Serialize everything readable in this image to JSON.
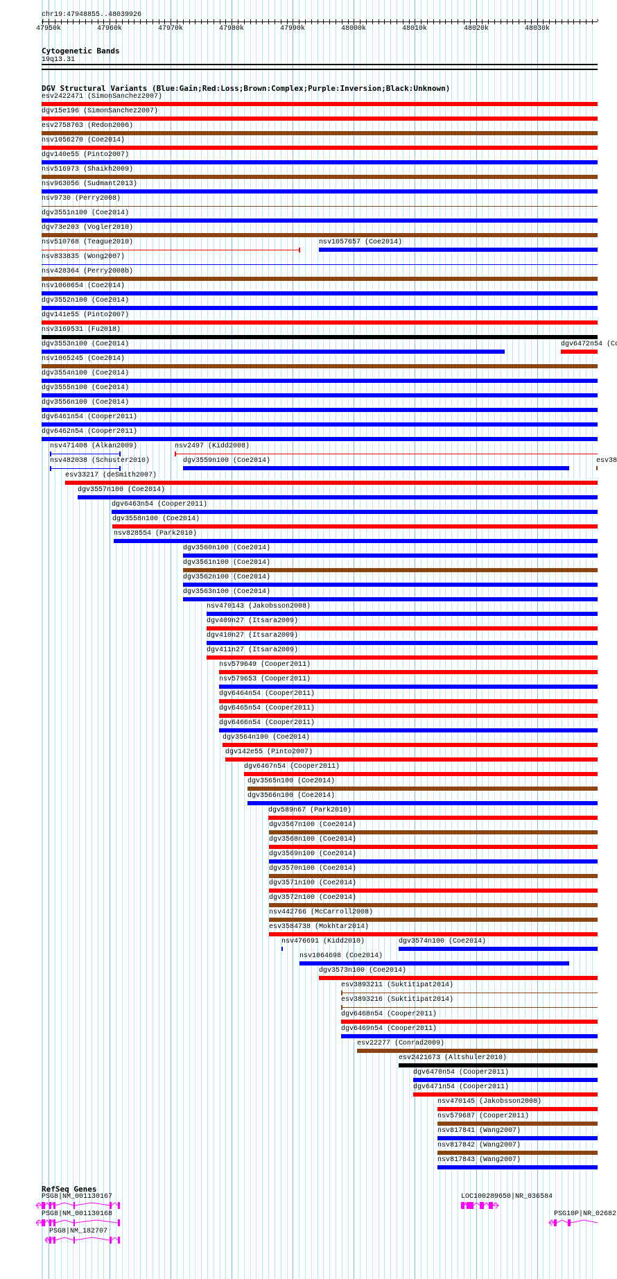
{
  "view": {
    "chrom": "chr19",
    "start": 47948855,
    "end": 48039926,
    "location_label": "chr19:47948855..48039926"
  },
  "axis": {
    "ticks": [
      "47950k",
      "47960k",
      "47970k",
      "47980k",
      "47990k",
      "48000k",
      "48010k",
      "48020k",
      "48030k"
    ],
    "tick_values": [
      47950000,
      47960000,
      47970000,
      47980000,
      47990000,
      48000000,
      48010000,
      48020000,
      48030000
    ]
  },
  "cytoband": {
    "title": "Cytogenetic Bands",
    "band": "19q13.31"
  },
  "dgv": {
    "title": "DGV Structural Variants (Blue:Gain;Red:Loss;Brown:Complex;Purple:Inversion;Black:Unknown)",
    "colors": {
      "gain": "#0000ff",
      "loss": "#ff0000",
      "complex": "#8b4513",
      "inversion": "#800080",
      "unknown": "#000000"
    },
    "rows": [
      [
        {
          "label": "esv2422471 (SimonSanchez2007)",
          "type": "loss",
          "start": 47948855,
          "end": 48039926
        }
      ],
      [
        {
          "label": "dgv15e196 (SimonSanchez2007)",
          "type": "loss",
          "start": 47948855,
          "end": 48039926
        }
      ],
      [
        {
          "label": "esv2758763 (Redon2006)",
          "type": "complex",
          "start": 47948855,
          "end": 48039926
        }
      ],
      [
        {
          "label": "nsv1056270 (Coe2014)",
          "type": "loss",
          "start": 47948855,
          "end": 48039926
        }
      ],
      [
        {
          "label": "dgv140e55 (Pinto2007)",
          "type": "gain",
          "start": 47948855,
          "end": 48039926
        }
      ],
      [
        {
          "label": "nsv516973 (Shaikh2009)",
          "type": "complex",
          "start": 47948855,
          "end": 48039926
        }
      ],
      [
        {
          "label": "nsv963056 (Sudmant2013)",
          "type": "gain",
          "start": 47948855,
          "end": 48039926
        }
      ],
      [
        {
          "label": "nsv9730 (Perry2008)",
          "type": "complex",
          "start": 47948855,
          "end": 48039926,
          "thin": true
        }
      ],
      [
        {
          "label": "dgv3551n100 (Coe2014)",
          "type": "gain",
          "start": 47948855,
          "end": 48039926
        }
      ],
      [
        {
          "label": "dgv73e203 (Vogler2010)",
          "type": "complex",
          "start": 47948855,
          "end": 48039926
        }
      ],
      [
        {
          "label": "nsv510768 (Teague2010)",
          "type": "loss",
          "start": 47948855,
          "end": 47991200,
          "thin": true
        },
        {
          "label": "nsv1057657 (Coe2014)",
          "type": "gain",
          "start": 47994300,
          "end": 48039926
        }
      ],
      [
        {
          "label": "nsv833835 (Wong2007)",
          "type": "gain",
          "start": 47948855,
          "end": 48039926,
          "thin": true
        }
      ],
      [
        {
          "label": "nsv428364 (Perry2008b)",
          "type": "complex",
          "start": 47948855,
          "end": 48039926
        }
      ],
      [
        {
          "label": "nsv1060654 (Coe2014)",
          "type": "gain",
          "start": 47948855,
          "end": 48039926
        }
      ],
      [
        {
          "label": "dgv3552n100 (Coe2014)",
          "type": "gain",
          "start": 47948855,
          "end": 48039926
        }
      ],
      [
        {
          "label": "dgv141e55 (Pinto2007)",
          "type": "loss",
          "start": 47948855,
          "end": 48039926
        }
      ],
      [
        {
          "label": "nsv3169531 (Fu2018)",
          "type": "unknown",
          "start": 47948855,
          "end": 48039926
        }
      ],
      [
        {
          "label": "dgv3553n100 (Coe2014)",
          "type": "gain",
          "start": 47948855,
          "end": 48024700
        },
        {
          "label": "dgv6472n54 (Co",
          "type": "loss",
          "start": 48033900,
          "end": 48039926
        }
      ],
      [
        {
          "label": "nsv1065245 (Coe2014)",
          "type": "complex",
          "start": 47948855,
          "end": 48039926
        }
      ],
      [
        {
          "label": "dgv3554n100 (Coe2014)",
          "type": "gain",
          "start": 47948855,
          "end": 48039926
        }
      ],
      [
        {
          "label": "dgv3555n100 (Coe2014)",
          "type": "gain",
          "start": 47948855,
          "end": 48039926
        }
      ],
      [
        {
          "label": "dgv3556n100 (Coe2014)",
          "type": "gain",
          "start": 47948855,
          "end": 48039926
        }
      ],
      [
        {
          "label": "dgv6461n54 (Cooper2011)",
          "type": "gain",
          "start": 47948855,
          "end": 48039926
        }
      ],
      [
        {
          "label": "dgv6462n54 (Cooper2011)",
          "type": "gain",
          "start": 47948855,
          "end": 48039926
        }
      ],
      [
        {
          "label": "nsv471408 (Alkan2009)",
          "type": "gain",
          "start": 47950200,
          "end": 47961800,
          "thin": true
        },
        {
          "label": "nsv2497 (Kidd2008)",
          "type": "loss",
          "start": 47970650,
          "end": 48039926,
          "thin": true
        }
      ],
      [
        {
          "label": "nsv482038 (Schuster2010)",
          "type": "gain",
          "start": 47950200,
          "end": 47961800,
          "thin": true
        },
        {
          "label": "dgv3559n100 (Coe2014)",
          "type": "gain",
          "start": 47972000,
          "end": 48035270
        },
        {
          "label": "esv38",
          "type": "complex",
          "start": 48039700,
          "end": 48039926
        }
      ],
      [
        {
          "label": "esv33217 (deSmith2007)",
          "type": "loss",
          "start": 47952700,
          "end": 48039926
        }
      ],
      [
        {
          "label": "dgv3557n100 (Coe2014)",
          "type": "gain",
          "start": 47954760,
          "end": 48039926
        }
      ],
      [
        {
          "label": "dgv6463n54 (Cooper2011)",
          "type": "gain",
          "start": 47960320,
          "end": 48039926
        }
      ],
      [
        {
          "label": "dgv3558n100 (Coe2014)",
          "type": "loss",
          "start": 47960440,
          "end": 48039926
        }
      ],
      [
        {
          "label": "nsv828554 (Park2010)",
          "type": "gain",
          "start": 47960660,
          "end": 48039926
        }
      ],
      [
        {
          "label": "dgv3560n100 (Coe2014)",
          "type": "gain",
          "start": 47972000,
          "end": 48039926
        }
      ],
      [
        {
          "label": "dgv3561n100 (Coe2014)",
          "type": "complex",
          "start": 47972000,
          "end": 48039926
        }
      ],
      [
        {
          "label": "dgv3562n100 (Coe2014)",
          "type": "gain",
          "start": 47972000,
          "end": 48039926
        }
      ],
      [
        {
          "label": "dgv3563n100 (Coe2014)",
          "type": "gain",
          "start": 47972000,
          "end": 48039926
        }
      ],
      [
        {
          "label": "nsv470143 (Jakobsson2008)",
          "type": "gain",
          "start": 47975880,
          "end": 48039926
        }
      ],
      [
        {
          "label": "dgv409n27 (Itsara2009)",
          "type": "loss",
          "start": 47975880,
          "end": 48039926
        }
      ],
      [
        {
          "label": "dgv410n27 (Itsara2009)",
          "type": "gain",
          "start": 47975880,
          "end": 48039926
        }
      ],
      [
        {
          "label": "dgv411n27 (Itsara2009)",
          "type": "loss",
          "start": 47975880,
          "end": 48039926
        }
      ],
      [
        {
          "label": "nsv579649 (Cooper2011)",
          "type": "loss",
          "start": 47977920,
          "end": 48039926
        }
      ],
      [
        {
          "label": "nsv579653 (Cooper2011)",
          "type": "gain",
          "start": 47977920,
          "end": 48039926
        }
      ],
      [
        {
          "label": "dgv6464n54 (Cooper2011)",
          "type": "loss",
          "start": 47977920,
          "end": 48039926
        }
      ],
      [
        {
          "label": "dgv6465n54 (Cooper2011)",
          "type": "loss",
          "start": 47977920,
          "end": 48039926
        }
      ],
      [
        {
          "label": "dgv6466n54 (Cooper2011)",
          "type": "gain",
          "start": 47977920,
          "end": 48039926
        }
      ],
      [
        {
          "label": "dgv3564n100 (Coe2014)",
          "type": "loss",
          "start": 47978490,
          "end": 48039926
        }
      ],
      [
        {
          "label": "dgv142e55 (Pinto2007)",
          "type": "loss",
          "start": 47978950,
          "end": 48039926
        }
      ],
      [
        {
          "label": "dgv6467n54 (Cooper2011)",
          "type": "loss",
          "start": 47982010,
          "end": 48039926
        }
      ],
      [
        {
          "label": "dgv3565n100 (Coe2014)",
          "type": "complex",
          "start": 47982580,
          "end": 48039926
        }
      ],
      [
        {
          "label": "dgv3566n100 (Coe2014)",
          "type": "gain",
          "start": 47982580,
          "end": 48039926
        }
      ],
      [
        {
          "label": "dgv589n67 (Park2010)",
          "type": "loss",
          "start": 47985990,
          "end": 48039926
        }
      ],
      [
        {
          "label": "dgv3567n100 (Coe2014)",
          "type": "complex",
          "start": 47986100,
          "end": 48039926
        }
      ],
      [
        {
          "label": "dgv3568n100 (Coe2014)",
          "type": "loss",
          "start": 47986100,
          "end": 48039926
        }
      ],
      [
        {
          "label": "dgv3569n100 (Coe2014)",
          "type": "gain",
          "start": 47986100,
          "end": 48039926
        }
      ],
      [
        {
          "label": "dgv3570n100 (Coe2014)",
          "type": "complex",
          "start": 47986100,
          "end": 48039926
        }
      ],
      [
        {
          "label": "dgv3571n100 (Coe2014)",
          "type": "loss",
          "start": 47986100,
          "end": 48039926
        }
      ],
      [
        {
          "label": "dgv3572n100 (Coe2014)",
          "type": "complex",
          "start": 47986100,
          "end": 48039926
        }
      ],
      [
        {
          "label": "nsv442766 (McCarroll2008)",
          "type": "complex",
          "start": 47986100,
          "end": 48039926
        }
      ],
      [
        {
          "label": "esv3584738 (Mokhtar2014)",
          "type": "loss",
          "start": 47986100,
          "end": 48039926
        }
      ],
      [
        {
          "label": "nsv476691 (Kidd2010)",
          "type": "gain",
          "start": 47988140,
          "end": 47988400
        },
        {
          "label": "dgv3574n100 (Coe2014)",
          "type": "gain",
          "start": 48007330,
          "end": 48039926
        }
      ],
      [
        {
          "label": "nsv1064698 (Coe2014)",
          "type": "gain",
          "start": 47991100,
          "end": 48035270
        }
      ],
      [
        {
          "label": "dgv3573n100 (Coe2014)",
          "type": "loss",
          "start": 47994300,
          "end": 48039926
        }
      ],
      [
        {
          "label": "esv3893211 (Suktitipat2014)",
          "type": "complex",
          "start": 47997900,
          "end": 48039926,
          "thin": true
        }
      ],
      [
        {
          "label": "esv3893216 (Suktitipat2014)",
          "type": "complex",
          "start": 47997900,
          "end": 48039926,
          "thin": true
        }
      ],
      [
        {
          "label": "dgv6468n54 (Cooper2011)",
          "type": "loss",
          "start": 47997900,
          "end": 48039926
        }
      ],
      [
        {
          "label": "dgv6469n54 (Cooper2011)",
          "type": "gain",
          "start": 47997900,
          "end": 48039926
        }
      ],
      [
        {
          "label": "esv22277 (Conrad2009)",
          "type": "complex",
          "start": 48000520,
          "end": 48039926
        }
      ],
      [
        {
          "label": "esv2421673 (Altshuler2010)",
          "type": "unknown",
          "start": 48007330,
          "end": 48039926
        }
      ],
      [
        {
          "label": "dgv6470n54 (Cooper2011)",
          "type": "gain",
          "start": 48009720,
          "end": 48039926
        }
      ],
      [
        {
          "label": "dgv6471n54 (Cooper2011)",
          "type": "loss",
          "start": 48009720,
          "end": 48039926
        }
      ],
      [
        {
          "label": "nsv470145 (Jakobsson2008)",
          "type": "loss",
          "start": 48013690,
          "end": 48039926
        }
      ],
      [
        {
          "label": "nsv579687 (Cooper2011)",
          "type": "complex",
          "start": 48013690,
          "end": 48039926
        }
      ],
      [
        {
          "label": "nsv817841 (Wang2007)",
          "type": "gain",
          "start": 48013690,
          "end": 48039926
        }
      ],
      [
        {
          "label": "nsv817842 (Wang2007)",
          "type": "complex",
          "start": 48013690,
          "end": 48039926
        }
      ],
      [
        {
          "label": "nsv817843 (Wang2007)",
          "type": "gain",
          "start": 48013690,
          "end": 48039926
        }
      ]
    ]
  },
  "refseq": {
    "title": "RefSeq Genes",
    "color": "#ff00ff",
    "genes": [
      {
        "label": "PSG8|NM_001130167",
        "strand": "-",
        "start": 47947950,
        "end": 47961690,
        "exons": [
          [
            47948855,
            47949420
          ],
          [
            47950100,
            47950450
          ],
          [
            47950790,
            47951130
          ],
          [
            47954080,
            47954300
          ],
          [
            47959980,
            47960320
          ],
          [
            47961350,
            47961690
          ]
        ]
      },
      {
        "label": "PSG8|NM_001130168",
        "strand": "-",
        "start": 47947950,
        "end": 47961690,
        "exons": [
          [
            47948855,
            47949420
          ],
          [
            47950100,
            47950450
          ],
          [
            47950790,
            47951130
          ],
          [
            47954080,
            47954300
          ],
          [
            47961350,
            47961690
          ]
        ]
      },
      {
        "label": "PSG8|NM_182707",
        "strand": "-",
        "start": 47949420,
        "end": 47961690,
        "exons": [
          [
            47950100,
            47950450
          ],
          [
            47950790,
            47951130
          ],
          [
            47954080,
            47954300
          ],
          [
            47959980,
            47960320
          ],
          [
            47961350,
            47961690
          ]
        ]
      },
      {
        "label": "LOC100289650|NR_036584",
        "strand": "+",
        "start": 48017550,
        "end": 48023690,
        "exons": [
          [
            48017550,
            48018120
          ],
          [
            48018460,
            48019600
          ],
          [
            48020620,
            48021300
          ],
          [
            48022100,
            48022780
          ]
        ]
      },
      {
        "label": "PSG10P|NR_02682",
        "strand": "-",
        "start": 48032000,
        "end": 48039926,
        "exons": [
          [
            48032770,
            48033220
          ],
          [
            48035040,
            48035490
          ]
        ]
      }
    ]
  }
}
